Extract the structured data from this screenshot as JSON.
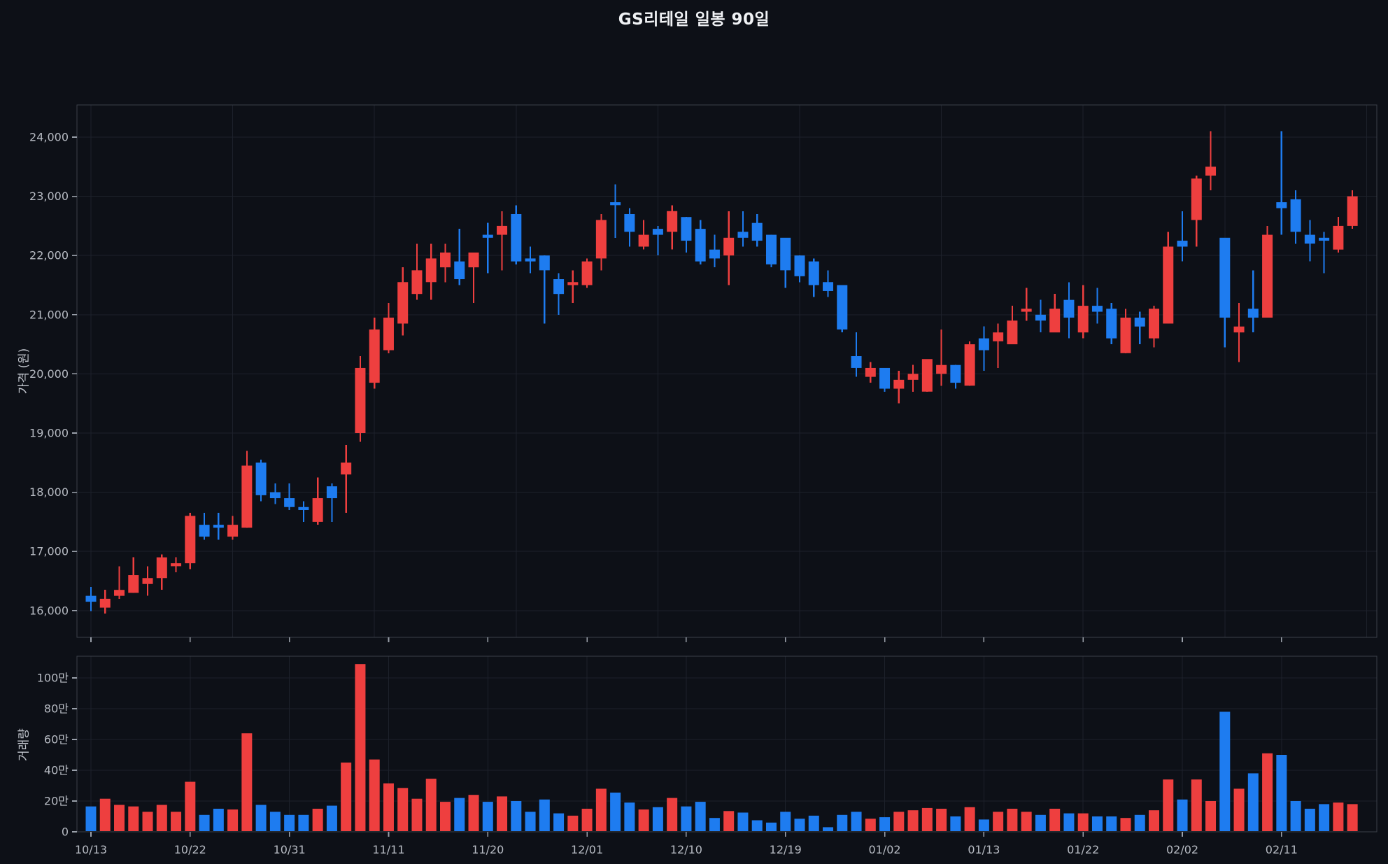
{
  "title": "GS리테일 일봉 90일",
  "colors": {
    "background": "#0d1017",
    "up": "#ee3f3f",
    "down": "#1e7cf0",
    "grid": "#1d212b",
    "panel_border": "#3a3f49",
    "tick_text": "#b7bbc3",
    "axis_tick_mark": "#9aa0aa",
    "title_text": "#f0f2f5"
  },
  "price_axis": {
    "label": "가격 (원)",
    "ticks": [
      {
        "value": 16000,
        "label": "16,000"
      },
      {
        "value": 17000,
        "label": "17,000"
      },
      {
        "value": 18000,
        "label": "18,000"
      },
      {
        "value": 19000,
        "label": "19,000"
      },
      {
        "value": 20000,
        "label": "20,000"
      },
      {
        "value": 21000,
        "label": "21,000"
      },
      {
        "value": 22000,
        "label": "22,000"
      },
      {
        "value": 23000,
        "label": "23,000"
      },
      {
        "value": 24000,
        "label": "24,000"
      }
    ]
  },
  "volume_axis": {
    "label": "거래량",
    "ticks": [
      {
        "value": 0,
        "label": "0"
      },
      {
        "value": 200000,
        "label": "20만"
      },
      {
        "value": 400000,
        "label": "40만"
      },
      {
        "value": 600000,
        "label": "60만"
      },
      {
        "value": 800000,
        "label": "80만"
      },
      {
        "value": 1000000,
        "label": "100만"
      }
    ]
  },
  "x_axis": {
    "ticks": [
      {
        "index": 0,
        "label": "10/13"
      },
      {
        "index": 7,
        "label": "10/22"
      },
      {
        "index": 14,
        "label": "10/31"
      },
      {
        "index": 21,
        "label": "11/11"
      },
      {
        "index": 28,
        "label": "11/20"
      },
      {
        "index": 35,
        "label": "12/01"
      },
      {
        "index": 42,
        "label": "12/10"
      },
      {
        "index": 49,
        "label": "12/19"
      },
      {
        "index": 56,
        "label": "01/02"
      },
      {
        "index": 63,
        "label": "01/13"
      },
      {
        "index": 70,
        "label": "01/22"
      },
      {
        "index": 77,
        "label": "02/02"
      },
      {
        "index": 84,
        "label": "02/11"
      }
    ]
  },
  "chart_data": {
    "type": "candlestick",
    "panels": [
      "price",
      "volume"
    ],
    "count": 90,
    "columns": [
      "open",
      "high",
      "low",
      "close",
      "volume"
    ],
    "volume_unit": "shares (만 = 10,000)",
    "price_range_visible": [
      15500,
      24550
    ],
    "volume_range_visible": [
      0,
      1140000
    ],
    "up_means": "close > open (red)",
    "down_means": "close < open (blue)",
    "candles": [
      [
        16250,
        16400,
        15990,
        16150,
        165000
      ],
      [
        16050,
        16350,
        15950,
        16200,
        215000
      ],
      [
        16250,
        16750,
        16200,
        16350,
        175000
      ],
      [
        16300,
        16900,
        16300,
        16600,
        165000
      ],
      [
        16450,
        16750,
        16250,
        16550,
        130000
      ],
      [
        16550,
        16950,
        16350,
        16900,
        175000
      ],
      [
        16750,
        16900,
        16650,
        16800,
        130000
      ],
      [
        16800,
        17650,
        16700,
        17600,
        325000
      ],
      [
        17450,
        17650,
        17200,
        17250,
        110000
      ],
      [
        17450,
        17650,
        17200,
        17400,
        150000
      ],
      [
        17250,
        17600,
        17200,
        17450,
        145000
      ],
      [
        17400,
        18700,
        17400,
        18450,
        640000
      ],
      [
        18500,
        18550,
        17850,
        17950,
        175000
      ],
      [
        18000,
        18150,
        17800,
        17900,
        130000
      ],
      [
        17900,
        18150,
        17700,
        17750,
        110000
      ],
      [
        17750,
        17850,
        17500,
        17700,
        110000
      ],
      [
        17500,
        18250,
        17450,
        17900,
        150000
      ],
      [
        18100,
        18150,
        17500,
        17900,
        170000
      ],
      [
        18300,
        18800,
        17650,
        18500,
        450000
      ],
      [
        19000,
        20300,
        18850,
        20100,
        1090000
      ],
      [
        19850,
        20950,
        19750,
        20750,
        470000
      ],
      [
        20400,
        21200,
        20350,
        20950,
        315000
      ],
      [
        20850,
        21800,
        20650,
        21550,
        285000
      ],
      [
        21350,
        22200,
        21250,
        21750,
        215000
      ],
      [
        21550,
        22200,
        21250,
        21950,
        345000
      ],
      [
        21800,
        22200,
        21550,
        22050,
        195000
      ],
      [
        21900,
        22450,
        21500,
        21600,
        220000
      ],
      [
        21800,
        22050,
        21200,
        22050,
        240000
      ],
      [
        22350,
        22550,
        21700,
        22300,
        195000
      ],
      [
        22350,
        22750,
        21750,
        22500,
        230000
      ],
      [
        22700,
        22850,
        21850,
        21900,
        200000
      ],
      [
        21950,
        22150,
        21700,
        21900,
        130000
      ],
      [
        22000,
        22000,
        20850,
        21750,
        210000
      ],
      [
        21600,
        21700,
        21000,
        21350,
        120000
      ],
      [
        21500,
        21750,
        21200,
        21550,
        105000
      ],
      [
        21500,
        21950,
        21450,
        21900,
        150000
      ],
      [
        21950,
        22700,
        21750,
        22600,
        280000
      ],
      [
        22900,
        23200,
        22300,
        22850,
        255000
      ],
      [
        22700,
        22800,
        22150,
        22400,
        190000
      ],
      [
        22150,
        22600,
        22100,
        22350,
        145000
      ],
      [
        22450,
        22500,
        22000,
        22350,
        160000
      ],
      [
        22400,
        22850,
        22100,
        22750,
        220000
      ],
      [
        22650,
        22650,
        22050,
        22250,
        165000
      ],
      [
        22450,
        22600,
        21850,
        21900,
        195000
      ],
      [
        22100,
        22350,
        21800,
        21950,
        90000
      ],
      [
        22000,
        22750,
        21500,
        22300,
        135000
      ],
      [
        22400,
        22750,
        22150,
        22300,
        125000
      ],
      [
        22550,
        22700,
        22150,
        22250,
        75000
      ],
      [
        22350,
        22350,
        21800,
        21850,
        60000
      ],
      [
        22300,
        22300,
        21450,
        21750,
        130000
      ],
      [
        22000,
        22000,
        21550,
        21650,
        85000
      ],
      [
        21900,
        21950,
        21300,
        21500,
        105000
      ],
      [
        21550,
        21750,
        21300,
        21400,
        30000
      ],
      [
        21500,
        21500,
        20700,
        20750,
        110000
      ],
      [
        20300,
        20700,
        19950,
        20100,
        130000
      ],
      [
        19950,
        20200,
        19850,
        20100,
        85000
      ],
      [
        20100,
        20100,
        19700,
        19750,
        95000
      ],
      [
        19750,
        20050,
        19500,
        19900,
        130000
      ],
      [
        19900,
        20150,
        19700,
        20000,
        140000
      ],
      [
        19700,
        20250,
        19700,
        20250,
        155000
      ],
      [
        20000,
        20750,
        19800,
        20150,
        150000
      ],
      [
        20150,
        20150,
        19750,
        19850,
        100000
      ],
      [
        19800,
        20550,
        19800,
        20500,
        160000
      ],
      [
        20600,
        20800,
        20050,
        20400,
        80000
      ],
      [
        20550,
        20850,
        20100,
        20700,
        130000
      ],
      [
        20500,
        21150,
        20500,
        20900,
        150000
      ],
      [
        21050,
        21450,
        20900,
        21100,
        130000
      ],
      [
        21000,
        21250,
        20700,
        20900,
        110000
      ],
      [
        20700,
        21350,
        20700,
        21100,
        150000
      ],
      [
        21250,
        21550,
        20600,
        20950,
        120000
      ],
      [
        20700,
        21500,
        20600,
        21150,
        120000
      ],
      [
        21150,
        21450,
        20850,
        21050,
        100000
      ],
      [
        21100,
        21200,
        20500,
        20600,
        100000
      ],
      [
        20350,
        21100,
        20350,
        20950,
        90000
      ],
      [
        20950,
        21050,
        20500,
        20800,
        110000
      ],
      [
        20600,
        21150,
        20450,
        21100,
        140000
      ],
      [
        20850,
        22400,
        20850,
        22150,
        340000
      ],
      [
        22250,
        22750,
        21900,
        22150,
        210000
      ],
      [
        22600,
        23350,
        22150,
        23300,
        340000
      ],
      [
        23350,
        24100,
        23100,
        23500,
        200000
      ],
      [
        22300,
        22300,
        20450,
        20950,
        780000
      ],
      [
        20700,
        21200,
        20200,
        20800,
        280000
      ],
      [
        21100,
        21750,
        20700,
        20950,
        380000
      ],
      [
        20950,
        22500,
        20950,
        22350,
        510000
      ],
      [
        22900,
        24100,
        22350,
        22800,
        500000
      ],
      [
        22950,
        23100,
        22200,
        22400,
        200000
      ],
      [
        22350,
        22600,
        21900,
        22200,
        150000
      ],
      [
        22300,
        22400,
        21700,
        22250,
        180000
      ],
      [
        22100,
        22650,
        22050,
        22500,
        190000
      ],
      [
        22500,
        23100,
        22450,
        23000,
        180000
      ]
    ]
  }
}
